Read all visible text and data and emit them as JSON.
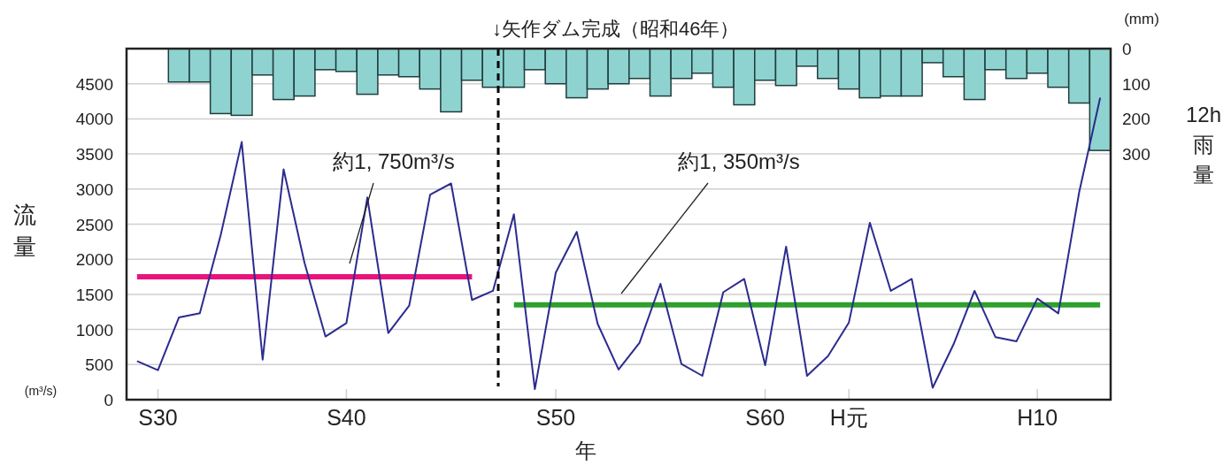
{
  "chart_data": {
    "type": "line",
    "xlabel": "年",
    "ylabel": "流量",
    "y2label": "12h雨量",
    "categories": [
      null,
      "S30",
      null,
      null,
      null,
      null,
      null,
      null,
      null,
      null,
      "S40",
      null,
      null,
      null,
      null,
      null,
      null,
      null,
      null,
      null,
      "S50",
      null,
      null,
      null,
      null,
      null,
      null,
      null,
      null,
      null,
      "S60",
      null,
      null,
      null,
      "H元",
      null,
      null,
      null,
      null,
      null,
      null,
      null,
      null,
      "H10",
      null,
      null,
      null
    ],
    "ylim": [
      0,
      5000
    ],
    "yticks": [
      0,
      500,
      1000,
      1500,
      2000,
      2500,
      3000,
      3500,
      4000,
      4500
    ],
    "y2lim": [
      1000,
      0
    ],
    "y2ticks": [
      0,
      100,
      200,
      300
    ],
    "grid": "y",
    "series": [
      {
        "type": "bar",
        "axis": "y2",
        "color": "#8fd3d0",
        "values": [
          null,
          null,
          95,
          95,
          185,
          190,
          75,
          145,
          135,
          60,
          65,
          130,
          75,
          80,
          115,
          180,
          90,
          110,
          110,
          60,
          100,
          140,
          115,
          100,
          85,
          135,
          85,
          70,
          110,
          160,
          90,
          105,
          50,
          85,
          115,
          140,
          135,
          135,
          40,
          80,
          145,
          60,
          85,
          70,
          110,
          155,
          290
        ]
      },
      {
        "color": "#e8147c",
        "values": [
          1750,
          1750,
          1750,
          1750,
          1750,
          1750,
          1750,
          1750,
          1750,
          1750,
          1750,
          1750,
          1750,
          1750,
          1750,
          1750,
          1750,
          null,
          null,
          null,
          null,
          null,
          null,
          null,
          null,
          null,
          null,
          null,
          null,
          null,
          null,
          null,
          null,
          null,
          null,
          null,
          null,
          null,
          null,
          null,
          null,
          null,
          null,
          null,
          null,
          null,
          null
        ]
      },
      {
        "color": "#2ea02e",
        "values": [
          null,
          null,
          null,
          null,
          null,
          null,
          null,
          null,
          null,
          null,
          null,
          null,
          null,
          null,
          null,
          null,
          null,
          null,
          1350,
          1350,
          1350,
          1350,
          1350,
          1350,
          1350,
          1350,
          1350,
          1350,
          1350,
          1350,
          1350,
          1350,
          1350,
          1350,
          1350,
          1350,
          1350,
          1350,
          1350,
          1350,
          1350,
          1350,
          1350,
          1350,
          1350,
          1350,
          1350
        ]
      },
      {
        "color": "#2b2b8f",
        "values": [
          550,
          420,
          1170,
          1230,
          2350,
          3670,
          570,
          3280,
          1950,
          900,
          1090,
          2880,
          950,
          1340,
          2920,
          3080,
          1420,
          1550,
          2640,
          150,
          1810,
          2390,
          1080,
          430,
          810,
          1650,
          510,
          340,
          1530,
          1720,
          490,
          2180,
          340,
          620,
          1100,
          2520,
          1550,
          1720,
          170,
          790,
          1550,
          890,
          830,
          1440,
          1230,
          2960,
          4300
        ]
      }
    ],
    "ref_lines": [
      {
        "axis": "x",
        "label": "↓矢作ダム完成（昭和46年）",
        "color": "#000000",
        "line_style": "dashed"
      }
    ],
    "annotations": [
      "約1, 750m³/s",
      "約1, 350m³/s",
      "(m³/s)",
      "(mm)"
    ]
  }
}
